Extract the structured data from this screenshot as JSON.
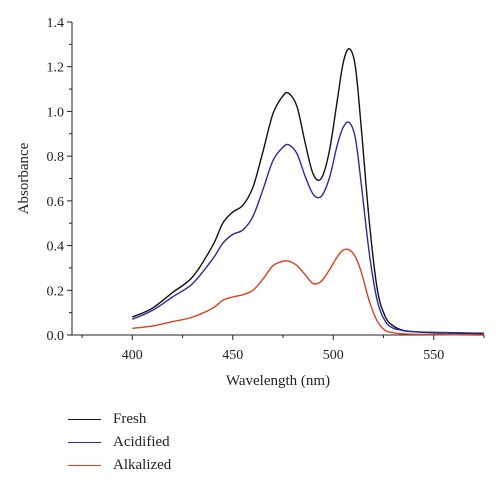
{
  "chart_data": {
    "type": "line",
    "xlabel": "Wavelength (nm)",
    "ylabel": "Absorbance",
    "xlim": [
      370,
      575
    ],
    "ylim": [
      0,
      1.4
    ],
    "x_ticks": [
      400,
      450,
      500,
      550
    ],
    "y_ticks": [
      0.0,
      0.2,
      0.4,
      0.6,
      0.8,
      1.0,
      1.2,
      1.4
    ],
    "x_tick_labels": [
      "400",
      "450",
      "500",
      "550"
    ],
    "y_tick_labels": [
      "0.0",
      "0.2",
      "0.4",
      "0.6",
      "0.8",
      "1.0",
      "1.2",
      "1.4"
    ],
    "grid": false,
    "legend_position": "bottom-left",
    "x": [
      400,
      410,
      420,
      430,
      440,
      445,
      450,
      455,
      460,
      465,
      470,
      475,
      478,
      482,
      486,
      490,
      494,
      498,
      502,
      505,
      508,
      511,
      514,
      518,
      522,
      526,
      530,
      535,
      540,
      550,
      560,
      575
    ],
    "series": [
      {
        "name": "Fresh",
        "color": "#111111",
        "values": [
          0.08,
          0.12,
          0.19,
          0.26,
          0.4,
          0.5,
          0.55,
          0.58,
          0.66,
          0.82,
          0.99,
          1.07,
          1.08,
          1.02,
          0.86,
          0.72,
          0.7,
          0.82,
          1.05,
          1.22,
          1.28,
          1.2,
          0.92,
          0.5,
          0.2,
          0.08,
          0.04,
          0.02,
          0.015,
          0.01,
          0.008,
          0.005
        ]
      },
      {
        "name": "Acidified",
        "color": "#2b2b9e",
        "values": [
          0.07,
          0.11,
          0.17,
          0.23,
          0.34,
          0.41,
          0.45,
          0.47,
          0.53,
          0.65,
          0.78,
          0.84,
          0.85,
          0.81,
          0.71,
          0.63,
          0.62,
          0.7,
          0.85,
          0.93,
          0.95,
          0.88,
          0.67,
          0.36,
          0.15,
          0.06,
          0.03,
          0.02,
          0.015,
          0.012,
          0.01,
          0.008
        ]
      },
      {
        "name": "Alkalized",
        "color": "#d9411e",
        "values": [
          0.03,
          0.04,
          0.06,
          0.08,
          0.12,
          0.155,
          0.17,
          0.18,
          0.2,
          0.25,
          0.31,
          0.33,
          0.33,
          0.31,
          0.27,
          0.23,
          0.24,
          0.29,
          0.35,
          0.38,
          0.38,
          0.35,
          0.28,
          0.15,
          0.06,
          0.02,
          0.01,
          0.005,
          0.003,
          0.002,
          0.001,
          0.0
        ]
      }
    ]
  }
}
